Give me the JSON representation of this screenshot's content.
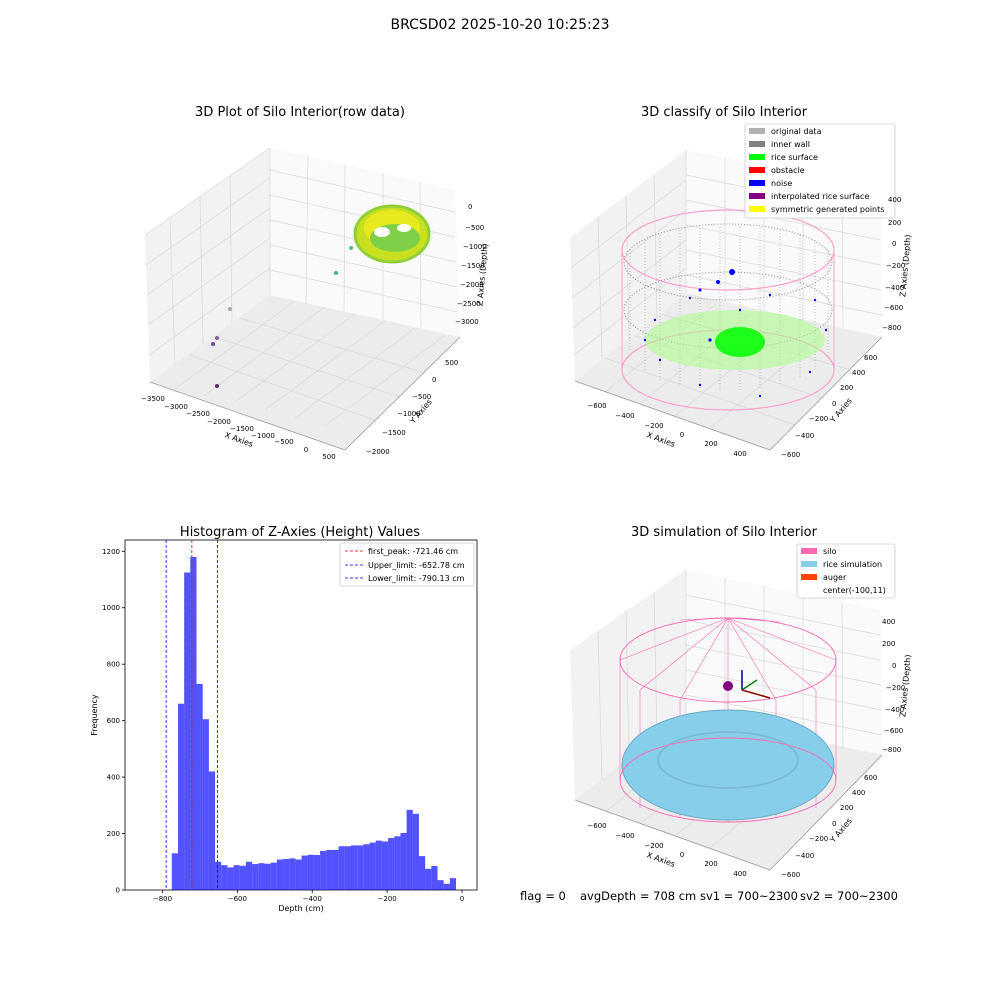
{
  "suptitle": "BRCSD02 2025-10-20 10:25:23",
  "footer": {
    "flag": "flag = 0",
    "avg_depth": "avgDepth = 708 cm",
    "sv1": "sv1 = 700~2300",
    "sv2": "sv2 = 700~2300"
  },
  "chart_data": [
    {
      "type": "scatter",
      "projection": "3d",
      "title": "3D Plot of Silo Interior(row data)",
      "xlabel": "X Axies",
      "ylabel": "Y Axies",
      "zlabel": "Z Axies (Depth)",
      "x_ticks": [
        "−3500",
        "−3000",
        "−2500",
        "−2000",
        "−1500",
        "−1000",
        "−500",
        "0",
        "500"
      ],
      "y_ticks": [
        "−2000",
        "−1500",
        "−1000",
        "−500",
        "0",
        "500"
      ],
      "z_ticks": [
        "−3000",
        "−2500",
        "−2000",
        "−1500",
        "−1000",
        "−500",
        "0"
      ],
      "colormap": "viridis",
      "note_points": "dense ring of points near x≈0..500, z≈0..−700; sparse outliers toward x≈−3000"
    },
    {
      "type": "scatter",
      "projection": "3d",
      "title": "3D classify of Silo Interior",
      "xlabel": "X Axies",
      "ylabel": "Y Axies",
      "zlabel": "Z Axies (Depth)",
      "x_ticks": [
        "−600",
        "−400",
        "−200",
        "0",
        "200",
        "400"
      ],
      "y_ticks": [
        "−600",
        "−400",
        "−200",
        "0",
        "200",
        "400",
        "600"
      ],
      "z_ticks": [
        "−800",
        "−600",
        "−400",
        "−200",
        "0",
        "200",
        "400"
      ],
      "legend": [
        {
          "label": "original data",
          "color": "#b0b0b0"
        },
        {
          "label": "inner wall",
          "color": "#808080"
        },
        {
          "label": "rice surface",
          "color": "#00ff00"
        },
        {
          "label": "obstacle",
          "color": "#ff0000"
        },
        {
          "label": "noise",
          "color": "#0000ff"
        },
        {
          "label": "interpolated rice surface",
          "color": "#800080"
        },
        {
          "label": "symmetric generated points",
          "color": "#ffff00"
        }
      ],
      "legend_loc": "upper right",
      "wireframe_color": "#ff69b4"
    },
    {
      "type": "bar",
      "subtype": "histogram",
      "title": "Histogram of Z-Axies (Height) Values",
      "xlabel": "Depth (cm)",
      "ylabel": "Frequency",
      "xlim": [
        -900,
        40
      ],
      "ylim": [
        0,
        1240
      ],
      "x_ticks": [
        -800,
        -600,
        -400,
        -200,
        0
      ],
      "x_tick_labels": [
        "−800",
        "−600",
        "−400",
        "−200",
        "0"
      ],
      "y_ticks": [
        0,
        200,
        400,
        600,
        800,
        1000,
        1200
      ],
      "bin_width": 16.5,
      "bin_start": -775,
      "values": [
        130,
        660,
        1125,
        1180,
        730,
        605,
        420,
        100,
        88,
        80,
        88,
        86,
        100,
        92,
        95,
        93,
        97,
        108,
        110,
        112,
        108,
        122,
        125,
        124,
        138,
        142,
        142,
        155,
        155,
        158,
        158,
        162,
        168,
        175,
        172,
        184,
        190,
        202,
        284,
        270,
        120,
        75,
        85,
        35,
        22,
        42
      ],
      "bar_color": "#0000ff",
      "vlines": [
        {
          "label": "first_peak: -721.46 cm",
          "x": -721.46,
          "color": "#ff0000"
        },
        {
          "label": "Upper_limit: -652.78 cm",
          "x": -652.78,
          "color": "#0000ff"
        },
        {
          "label": "Lower_limit: -790.13 cm",
          "x": -790.13,
          "color": "#0000ff"
        }
      ],
      "legend_loc": "upper right"
    },
    {
      "type": "scatter",
      "projection": "3d",
      "title": "3D simulation of Silo Interior",
      "xlabel": "X Axies",
      "ylabel": "Y Axies",
      "zlabel": "Z Axies (Depth)",
      "x_ticks": [
        "−600",
        "−400",
        "−200",
        "0",
        "200",
        "400"
      ],
      "y_ticks": [
        "−600",
        "−400",
        "−200",
        "0",
        "200",
        "400",
        "600"
      ],
      "z_ticks": [
        "−800",
        "−600",
        "−400",
        "−200",
        "0",
        "200",
        "400"
      ],
      "legend": [
        {
          "label": "silo",
          "color": "#ff69b4"
        },
        {
          "label": "rice simulation",
          "color": "#87ceeb"
        },
        {
          "label": "auger",
          "color": "#ff4500"
        },
        {
          "label": "center(-100,11)",
          "color": "#ffffff"
        }
      ],
      "legend_loc": "upper right"
    }
  ]
}
